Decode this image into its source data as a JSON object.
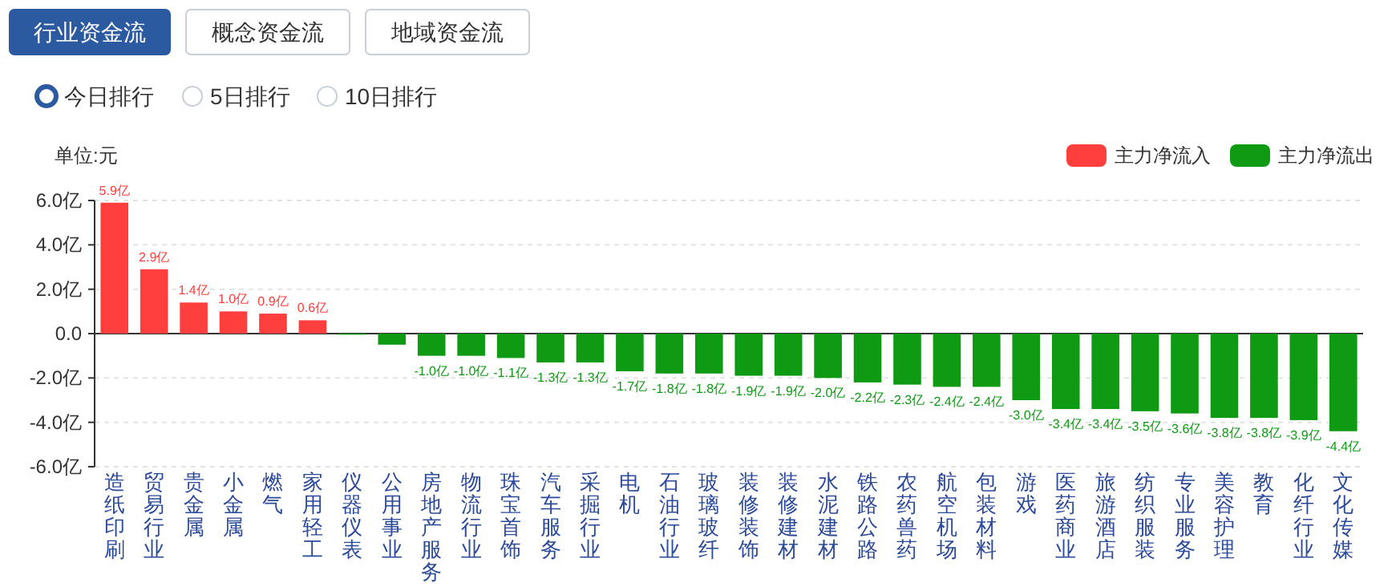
{
  "chart_data": {
    "type": "bar",
    "ylabel": "单位:元",
    "annotations": [
      "行业资金流",
      "概念资金流",
      "地域资金流",
      "今日排行",
      "5日排行",
      "10日排行"
    ],
    "categories": [
      "造纸印刷",
      "贸易行业",
      "贵金属",
      "小金属",
      "燃气",
      "家用轻工",
      "仪器仪表",
      "公用事业",
      "房地产服务",
      "物流行业",
      "珠宝首饰",
      "汽车服务",
      "采掘行业",
      "电机",
      "石油行业",
      "玻璃玻纤",
      "装修装饰",
      "装修建材",
      "水泥建材",
      "铁路公路",
      "农药兽药",
      "航空机场",
      "包装材料",
      "游戏",
      "医药商业",
      "旅游酒店",
      "纺织服装",
      "专业服务",
      "美容护理",
      "教育",
      "化纤行业",
      "文化传媒"
    ],
    "series": [
      {
        "name": "主力净流入",
        "color": "#ff3e3e",
        "values": [
          5.9,
          2.9,
          1.4,
          1.0,
          0.9,
          0.6,
          null,
          null,
          null,
          null,
          null,
          null,
          null,
          null,
          null,
          null,
          null,
          null,
          null,
          null,
          null,
          null,
          null,
          null,
          null,
          null,
          null,
          null,
          null,
          null,
          null,
          null
        ],
        "value_labels": [
          "5.9亿",
          "2.9亿",
          "1.4亿",
          "1.0亿",
          "0.9亿",
          "0.6亿",
          null,
          null,
          null,
          null,
          null,
          null,
          null,
          null,
          null,
          null,
          null,
          null,
          null,
          null,
          null,
          null,
          null,
          null,
          null,
          null,
          null,
          null,
          null,
          null,
          null,
          null
        ]
      },
      {
        "name": "主力净流出",
        "color": "#0f9a14",
        "values": [
          null,
          null,
          null,
          null,
          null,
          null,
          -0.05,
          -0.5,
          -1.0,
          -1.0,
          -1.1,
          -1.3,
          -1.3,
          -1.7,
          -1.8,
          -1.8,
          -1.9,
          -1.9,
          -2.0,
          -2.2,
          -2.3,
          -2.4,
          -2.4,
          -3.0,
          -3.4,
          -3.4,
          -3.5,
          -3.6,
          -3.8,
          -3.8,
          -3.9,
          -4.4
        ],
        "value_labels": [
          null,
          null,
          null,
          null,
          null,
          null,
          null,
          null,
          "-1.0亿",
          "-1.0亿",
          "-1.1亿",
          "-1.3亿",
          "-1.3亿",
          "-1.7亿",
          "-1.8亿",
          "-1.8亿",
          "-1.9亿",
          "-1.9亿",
          "-2.0亿",
          "-2.2亿",
          "-2.3亿",
          "-2.4亿",
          "-2.4亿",
          "-3.0亿",
          "-3.4亿",
          "-3.4亿",
          "-3.5亿",
          "-3.6亿",
          "-3.8亿",
          "-3.8亿",
          "-3.9亿",
          "-4.4亿"
        ]
      }
    ],
    "ylim": [
      -6,
      6
    ],
    "yticks": [
      {
        "value": -6,
        "label": "-6.0亿"
      },
      {
        "value": -4,
        "label": "-4.0亿"
      },
      {
        "value": -2,
        "label": "-2.0亿"
      },
      {
        "value": 0,
        "label": "0.0"
      },
      {
        "value": 2,
        "label": "2.0亿"
      },
      {
        "value": 4,
        "label": "4.0亿"
      },
      {
        "value": 6,
        "label": "6.0亿"
      }
    ],
    "grid": "y",
    "legend": "top right"
  }
}
